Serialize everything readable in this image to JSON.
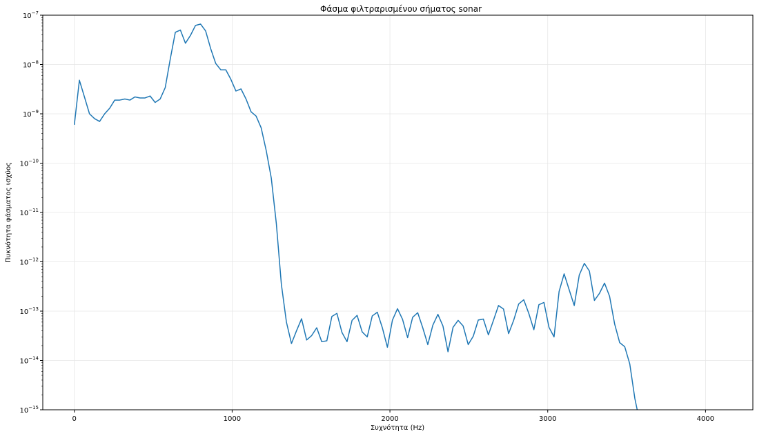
{
  "chart_data": {
    "type": "line",
    "title": "Φάσμα φιλτραρισμένου σήματος sonar",
    "xlabel": "Συχνότητα (Hz)",
    "ylabel": "Πυκνότητα φάσματος ισχύος",
    "xlim": [
      -200,
      4300
    ],
    "ylim": [
      1e-15,
      1e-07
    ],
    "yscale": "log",
    "grid": true,
    "line_color": "#1f77b4",
    "x_ticks": [
      0,
      1000,
      2000,
      3000,
      4000
    ],
    "x_tick_labels": [
      "0",
      "1000",
      "2000",
      "3000",
      "4000"
    ],
    "y_ticks": [
      1e-15,
      1e-14,
      1e-13,
      1e-12,
      1e-11,
      1e-10,
      1e-09,
      1e-08,
      1e-07
    ],
    "y_tick_labels": [
      {
        "base": "10",
        "exp": "−15"
      },
      {
        "base": "10",
        "exp": "−14"
      },
      {
        "base": "10",
        "exp": "−13"
      },
      {
        "base": "10",
        "exp": "−12"
      },
      {
        "base": "10",
        "exp": "−11"
      },
      {
        "base": "10",
        "exp": "−10"
      },
      {
        "base": "10",
        "exp": "−9"
      },
      {
        "base": "10",
        "exp": "−8"
      },
      {
        "base": "10",
        "exp": "−7"
      }
    ],
    "series": [
      {
        "x": [
          0,
          32,
          64,
          96,
          128,
          160,
          192,
          224,
          256,
          288,
          320,
          352,
          384,
          416,
          448,
          480,
          512,
          544,
          576,
          608,
          640,
          672,
          704,
          736,
          768,
          800,
          832,
          864,
          896,
          928,
          960,
          992,
          1024,
          1056,
          1088,
          1120,
          1152,
          1184,
          1216,
          1248,
          1280,
          1312,
          1344,
          1376,
          1408,
          1440,
          1472,
          1504,
          1536,
          1568,
          1600,
          1632,
          1664,
          1696,
          1728,
          1760,
          1792,
          1824,
          1856,
          1888,
          1920,
          1952,
          1984,
          2016,
          2048,
          2080,
          2112,
          2144,
          2176,
          2208,
          2240,
          2272,
          2304,
          2336,
          2368,
          2400,
          2432,
          2464,
          2496,
          2528,
          2560,
          2592,
          2624,
          2656,
          2688,
          2720,
          2752,
          2784,
          2816,
          2848,
          2880,
          2912,
          2944,
          2976,
          3008,
          3040,
          3072,
          3104,
          3136,
          3168,
          3200,
          3232,
          3264,
          3296,
          3328,
          3360,
          3392,
          3424,
          3456,
          3488,
          3520,
          3552,
          3570
        ],
        "y": [
          6e-10,
          4.8e-09,
          2.2e-09,
          1e-09,
          8e-10,
          7e-10,
          1e-09,
          1.3e-09,
          1.9e-09,
          1.9e-09,
          2e-09,
          1.9e-09,
          2.2e-09,
          2.1e-09,
          2.1e-09,
          2.3e-09,
          1.7e-09,
          2e-09,
          3.4e-09,
          1.3e-08,
          4.5e-08,
          5e-08,
          2.7e-08,
          3.9e-08,
          6.2e-08,
          6.6e-08,
          4.8e-08,
          2.1e-08,
          1.05e-08,
          7.8e-09,
          7.8e-09,
          5e-09,
          2.9e-09,
          3.2e-09,
          2e-09,
          1.1e-09,
          9e-10,
          5.2e-10,
          1.8e-10,
          5e-11,
          6e-12,
          3.5e-13,
          6e-14,
          2.2e-14,
          4e-14,
          7e-14,
          2.6e-14,
          3.2e-14,
          4.6e-14,
          2.4e-14,
          2.5e-14,
          7.8e-14,
          9e-14,
          3.7e-14,
          2.4e-14,
          6.5e-14,
          8.2e-14,
          3.8e-14,
          3e-14,
          8e-14,
          9.5e-14,
          4.6e-14,
          1.85e-14,
          6.6e-14,
          1.12e-13,
          6.8e-14,
          2.9e-14,
          7.5e-14,
          9.3e-14,
          4.6e-14,
          2.1e-14,
          5.2e-14,
          8.6e-14,
          5e-14,
          1.5e-14,
          4.7e-14,
          6.5e-14,
          5e-14,
          2.1e-14,
          3.1e-14,
          6.6e-14,
          6.9e-14,
          3.3e-14,
          6.5e-14,
          1.3e-13,
          1.1e-13,
          3.5e-14,
          6.5e-14,
          1.4e-13,
          1.7e-13,
          9e-14,
          4.2e-14,
          1.35e-13,
          1.5e-13,
          4.7e-14,
          3e-14,
          2.5e-13,
          5.7e-13,
          2.7e-13,
          1.3e-13,
          5.4e-13,
          9.3e-13,
          6.5e-13,
          1.65e-13,
          2.3e-13,
          3.7e-13,
          2e-13,
          5.5e-14,
          2.3e-14,
          1.9e-14,
          8.5e-15,
          1.7e-15,
          9e-16
        ]
      }
    ]
  }
}
